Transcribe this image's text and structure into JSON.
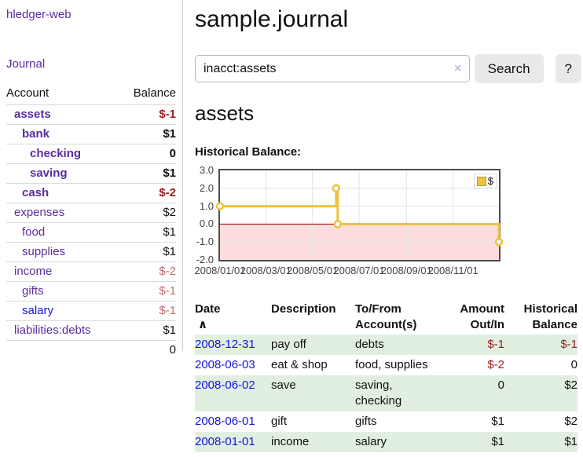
{
  "colors": {
    "link_purple": "#5a2ca0",
    "link_blue": "#1414dd",
    "negative_strong": "#9a1b1f",
    "negative_dim": "#bd6e72",
    "row_stripe_green": "#e1efe1",
    "series_gold": "#edc240",
    "negative_region_pink": "#fcdcdc",
    "zero_line_red": "#8b0000"
  },
  "app": {
    "title": "hledger-web"
  },
  "sidebar": {
    "journal_link": "Journal",
    "accounts": {
      "headers": {
        "account": "Account",
        "balance": "Balance"
      },
      "rows": [
        {
          "name": "assets",
          "balance": "$-1",
          "flags": "d1 bold",
          "bal_class": "neg"
        },
        {
          "name": "bank",
          "balance": "$1",
          "flags": "d2 bold",
          "bal_class": ""
        },
        {
          "name": "checking",
          "balance": "0",
          "flags": "d3 bold",
          "bal_class": ""
        },
        {
          "name": "saving",
          "balance": "$1",
          "flags": "d3 bold",
          "bal_class": ""
        },
        {
          "name": "cash",
          "balance": "$-2",
          "flags": "d2 bold",
          "bal_class": "neg"
        },
        {
          "name": "expenses",
          "balance": "$2",
          "flags": "d1",
          "bal_class": ""
        },
        {
          "name": "food",
          "balance": "$1",
          "flags": "d2",
          "bal_class": ""
        },
        {
          "name": "supplies",
          "balance": "$1",
          "flags": "d2",
          "bal_class": ""
        },
        {
          "name": "income",
          "balance": "$-2",
          "flags": "d1",
          "bal_class": "negdim"
        },
        {
          "name": "gifts",
          "balance": "$-1",
          "flags": "d2",
          "bal_class": "negdim"
        },
        {
          "name": "salary",
          "balance": "$-1",
          "flags": "d2 blue",
          "bal_class": "negdim"
        },
        {
          "name": "liabilities:debts",
          "balance": "$1",
          "flags": "d1",
          "bal_class": ""
        }
      ],
      "total": "0"
    }
  },
  "page": {
    "title": "sample.journal",
    "account_title": "assets",
    "chart_label": "Historical Balance:"
  },
  "search": {
    "value": "inacct:assets",
    "clear_icon": "×",
    "button_label": "Search",
    "help_label": "?"
  },
  "chart_data": {
    "type": "line",
    "title": "Historical Balance:",
    "style": "step-line-with-markers",
    "series": [
      {
        "name": "$",
        "color": "#edc240",
        "points": [
          {
            "date": "2008-01-01",
            "day": 0,
            "value": 1
          },
          {
            "date": "2008-06-01",
            "day": 152,
            "value": 2
          },
          {
            "date": "2008-06-03",
            "day": 154,
            "value": 0
          },
          {
            "date": "2008-12-31",
            "day": 365,
            "value": -1
          }
        ]
      }
    ],
    "x_ticks": [
      {
        "label": "2008/01/01",
        "day": 0
      },
      {
        "label": "2008/03/01",
        "day": 60
      },
      {
        "label": "2008/05/01",
        "day": 121
      },
      {
        "label": "2008/07/01",
        "day": 182
      },
      {
        "label": "2008/09/01",
        "day": 244
      },
      {
        "label": "2008/11/01",
        "day": 305
      }
    ],
    "y_ticks": [
      {
        "label": "3.0",
        "value": 3
      },
      {
        "label": "2.0",
        "value": 2
      },
      {
        "label": "1.0",
        "value": 1
      },
      {
        "label": "0.0",
        "value": 0
      },
      {
        "label": "-1.0",
        "value": -1
      },
      {
        "label": "-2.0",
        "value": -2
      }
    ],
    "ylim": [
      -2,
      3
    ],
    "xlim_days": [
      0,
      365
    ],
    "grid": true,
    "legend": {
      "label": "$",
      "position": "top-right",
      "swatch_color": "#edc240"
    },
    "negative_region_color": "#fcdcdc",
    "zero_line_color": "#8b0000",
    "grid_color": "#e4e4e4",
    "border_color": "#4d4d4d"
  },
  "register": {
    "columns": [
      {
        "line1": "Date",
        "line2": "",
        "sort": "∧"
      },
      {
        "line1": "Description",
        "line2": ""
      },
      {
        "line1": "To/From",
        "line2": "Account(s)"
      },
      {
        "line1": "Amount",
        "line2": "Out/In"
      },
      {
        "line1": "Historical",
        "line2": "Balance"
      }
    ],
    "rows": [
      {
        "date": "2008-12-31",
        "description": "pay off",
        "accounts": "debts",
        "amount": "$-1",
        "amount_class": "neg",
        "balance": "$-1",
        "balance_class": "neg"
      },
      {
        "date": "2008-06-03",
        "description": "eat & shop",
        "accounts": "food, supplies",
        "amount": "$-2",
        "amount_class": "neg",
        "balance": "0",
        "balance_class": ""
      },
      {
        "date": "2008-06-02",
        "description": "save",
        "accounts": "saving, checking",
        "amount": "0",
        "amount_class": "",
        "balance": "$2",
        "balance_class": ""
      },
      {
        "date": "2008-06-01",
        "description": "gift",
        "accounts": "gifts",
        "amount": "$1",
        "amount_class": "",
        "balance": "$2",
        "balance_class": ""
      },
      {
        "date": "2008-01-01",
        "description": "income",
        "accounts": "salary",
        "amount": "$1",
        "amount_class": "",
        "balance": "$1",
        "balance_class": ""
      }
    ]
  }
}
